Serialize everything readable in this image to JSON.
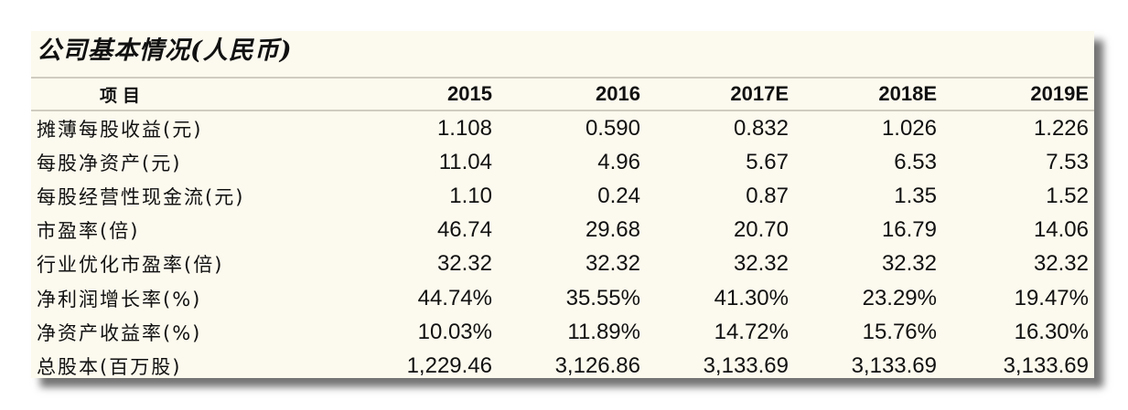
{
  "title": "公司基本情况(人民币)",
  "columns": [
    "项目",
    "2015",
    "2016",
    "2017E",
    "2018E",
    "2019E"
  ],
  "rows": [
    {
      "label": "摊薄每股收益(元)",
      "values": [
        "1.108",
        "0.590",
        "0.832",
        "1.026",
        "1.226"
      ]
    },
    {
      "label": "每股净资产(元)",
      "values": [
        "11.04",
        "4.96",
        "5.67",
        "6.53",
        "7.53"
      ]
    },
    {
      "label": "每股经营性现金流(元)",
      "values": [
        "1.10",
        "0.24",
        "0.87",
        "1.35",
        "1.52"
      ]
    },
    {
      "label": "市盈率(倍)",
      "values": [
        "46.74",
        "29.68",
        "20.70",
        "16.79",
        "14.06"
      ]
    },
    {
      "label": "行业优化市盈率(倍)",
      "values": [
        "32.32",
        "32.32",
        "32.32",
        "32.32",
        "32.32"
      ]
    },
    {
      "label": "净利润增长率(%)",
      "values": [
        "44.74%",
        "35.55%",
        "41.30%",
        "23.29%",
        "19.47%"
      ]
    },
    {
      "label": "净资产收益率(%)",
      "values": [
        "10.03%",
        "11.89%",
        "14.72%",
        "15.76%",
        "16.30%"
      ]
    },
    {
      "label": "总股本(百万股)",
      "values": [
        "1,229.46",
        "3,126.86",
        "3,133.69",
        "3,133.69",
        "3,133.69"
      ]
    }
  ]
}
